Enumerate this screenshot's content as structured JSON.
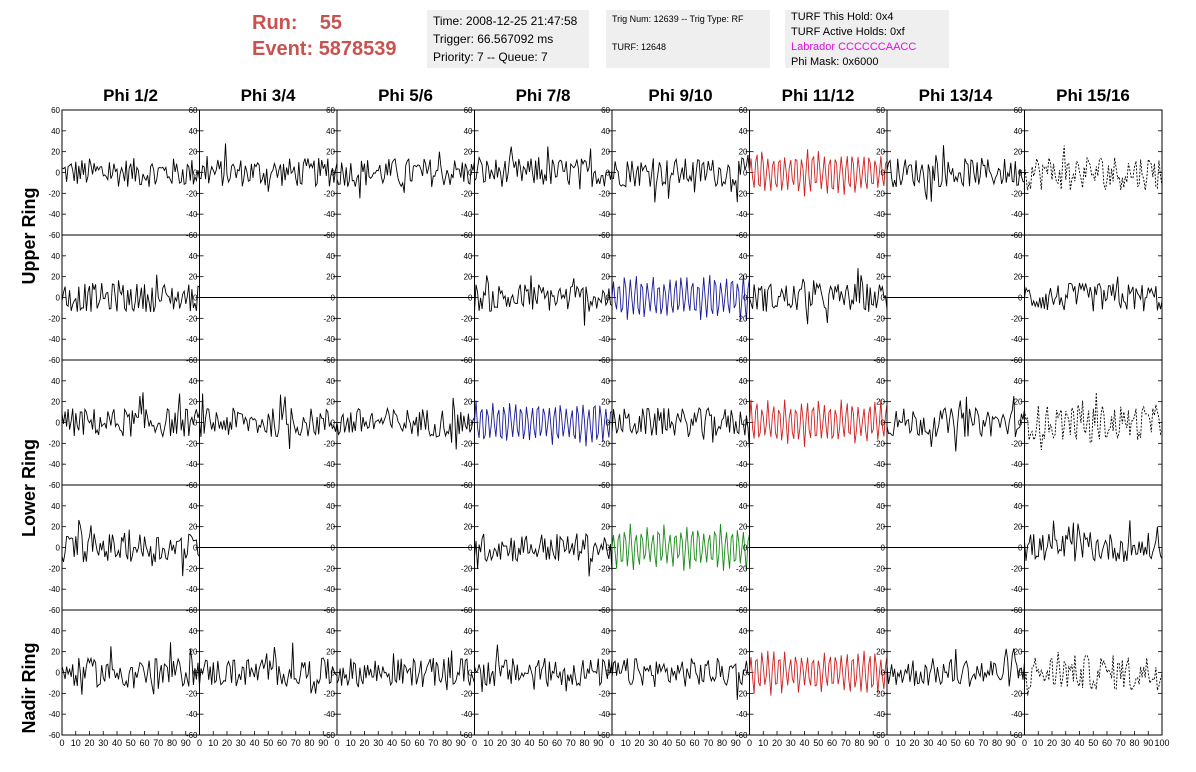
{
  "header": {
    "run_label": "Run:",
    "run_value": "55",
    "event_label": "Event:",
    "event_value": "5878539"
  },
  "time_box": {
    "time": "Time: 2008-12-25 21:47:58",
    "trigger": "Trigger: 66.567092 ms",
    "priority": "Priority: 7 -- Queue: 7"
  },
  "trig_box": {
    "trig": "Trig Num: 12639 -- Trig Type: RF",
    "turf": "TURF: 12648"
  },
  "turf_box": {
    "this_hold": "TURF This Hold: 0x4",
    "active_holds": "TURF Active Holds: 0xf",
    "labrador": "Labrador CCCCCCAACC",
    "phi_mask": "Phi Mask: 0x6000"
  },
  "colors": {
    "header_red": "#c9524f",
    "labrador": "#e010e0",
    "trace_black": "#000000",
    "trace_red": "#d02020",
    "trace_blue": "#1a1a9a",
    "trace_green": "#1a8a1a"
  },
  "chart_data": {
    "type": "line",
    "columns": [
      "Phi 1/2",
      "Phi 3/4",
      "Phi 5/6",
      "Phi 7/8",
      "Phi 9/10",
      "Phi 11/12",
      "Phi 13/14",
      "Phi 15/16"
    ],
    "ring_labels": [
      "Upper Ring",
      "Lower Ring",
      "Nadir Ring"
    ],
    "ylim": [
      -60,
      60
    ],
    "xlim": [
      0,
      100
    ],
    "y_ticks": [
      "60",
      "40",
      "20",
      "0",
      "-20",
      "-40",
      "-60"
    ],
    "x_ticks": [
      "0",
      "10",
      "20",
      "30",
      "40",
      "50",
      "60",
      "70",
      "80",
      "90",
      "100"
    ],
    "panels": [
      [
        "black-noise",
        "black-noise",
        "black-noise",
        "black-noise",
        "black-noise",
        "red-noise",
        "black-noise",
        "dotted-noise"
      ],
      [
        "black-noise",
        "flat",
        "flat",
        "black-noise",
        "blue-noise",
        "black-noise",
        "flat",
        "black-noise"
      ],
      [
        "black-noise",
        "black-noise",
        "black-noise",
        "blue-noise",
        "black-noise",
        "red-noise",
        "black-noise",
        "dotted-noise"
      ],
      [
        "black-noise",
        "flat",
        "flat",
        "black-noise",
        "green-noise",
        "flat",
        "flat",
        "black-noise"
      ],
      [
        "black-noise",
        "black-noise",
        "black-noise",
        "black-noise",
        "black-noise",
        "red-noise",
        "black-noise",
        "dotted-noise"
      ]
    ]
  }
}
